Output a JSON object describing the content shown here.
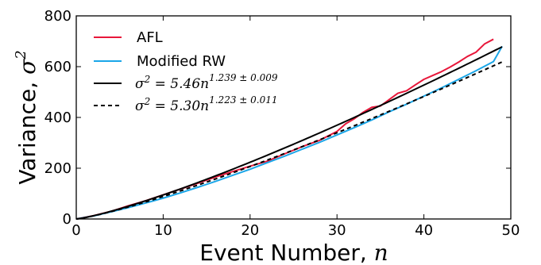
{
  "chart_data": {
    "type": "line",
    "xlabel_text": "Event Number, ",
    "xlabel_math": "n",
    "ylabel_text": "Variance, ",
    "ylabel_math": "σ",
    "ylabel_sup": "2",
    "xlim": [
      0,
      50
    ],
    "ylim": [
      0,
      800
    ],
    "xticks": [
      0,
      10,
      20,
      30,
      40,
      50
    ],
    "yticks": [
      0,
      200,
      400,
      600,
      800
    ],
    "grid": false,
    "legend_position": "top-left",
    "series": [
      {
        "name": "AFL",
        "color": "#e8173a",
        "style": "solid",
        "x": [
          0,
          2,
          4,
          6,
          8,
          10,
          12,
          14,
          16,
          18,
          20,
          22,
          24,
          26,
          28,
          30,
          31,
          32,
          33,
          34,
          35,
          36,
          37,
          38,
          39,
          40,
          41,
          42,
          43,
          44,
          45,
          46,
          47,
          48
        ],
        "y": [
          0,
          13,
          30,
          52,
          72,
          95,
          118,
          141,
          165,
          187,
          208,
          228,
          257,
          285,
          310,
          345,
          375,
          395,
          420,
          440,
          445,
          470,
          495,
          505,
          528,
          550,
          565,
          580,
          598,
          618,
          640,
          657,
          690,
          708
        ]
      },
      {
        "name": "Modified RW",
        "color": "#1aa6e8",
        "style": "solid",
        "x": [
          0,
          2,
          4,
          6,
          8,
          10,
          12,
          14,
          16,
          18,
          20,
          22,
          24,
          26,
          28,
          30,
          32,
          34,
          36,
          38,
          40,
          42,
          44,
          46,
          48,
          49
        ],
        "y": [
          0,
          12,
          28,
          45,
          63,
          82,
          103,
          125,
          148,
          172,
          196,
          222,
          248,
          275,
          302,
          331,
          360,
          390,
          422,
          452,
          484,
          516,
          550,
          584,
          620,
          680
        ]
      },
      {
        "label_prefix": "σ",
        "label_sup": "2",
        "label_body": " = 5.46n",
        "label_exp": "1.239 ± 0.009",
        "color": "#000000",
        "style": "solid",
        "coef": 5.46,
        "exp": 1.239,
        "x_range": [
          0,
          49
        ]
      },
      {
        "label_prefix": "σ",
        "label_sup": "2",
        "label_body": " = 5.30n",
        "label_exp": "1.223 ± 0.011",
        "color": "#000000",
        "style": "dashed",
        "coef": 5.3,
        "exp": 1.223,
        "x_range": [
          0,
          49
        ]
      }
    ]
  }
}
